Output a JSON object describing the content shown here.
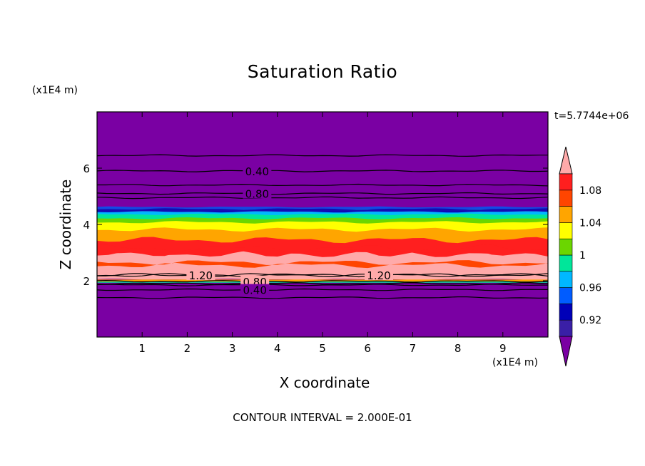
{
  "chart_data": {
    "type": "heatmap",
    "title": "Saturation Ratio",
    "xlabel": "X coordinate",
    "ylabel": "Z coordinate",
    "x_unit": "(x1E4 m)",
    "y_unit": "(x1E4 m)",
    "time_label": "t=5.7744e+06",
    "footer": "CONTOUR INTERVAL = 2.000E-01",
    "xlim": [
      0,
      10
    ],
    "ylim": [
      0,
      8
    ],
    "x_ticks": [
      "1",
      "2",
      "3",
      "4",
      "5",
      "6",
      "7",
      "8",
      "9"
    ],
    "y_ticks": [
      "2",
      "4",
      "6"
    ],
    "colorbar": {
      "levels": [
        0.92,
        0.94,
        0.96,
        0.98,
        1.0,
        1.02,
        1.04,
        1.06,
        1.08,
        1.1
      ],
      "labels": [
        "0.92",
        "0.96",
        "1",
        "1.04",
        "1.08"
      ],
      "colors": [
        "#7a00a3",
        "#3a1fa6",
        "#0000b8",
        "#005cff",
        "#00b8ff",
        "#00e69a",
        "#6bd600",
        "#ffff00",
        "#ffa500",
        "#ff4500",
        "#ff1f1f",
        "#ffaaaa"
      ]
    },
    "layers": [
      {
        "z": [
          0.0,
          1.95
        ],
        "level": "<0.92"
      },
      {
        "z": [
          1.95,
          2.03
        ],
        "level": "transition"
      },
      {
        "z": [
          2.03,
          2.8
        ],
        "level": ">1.1"
      },
      {
        "z": [
          2.8,
          3.6
        ],
        "level": "1.08-1.1"
      },
      {
        "z": [
          3.6,
          4.05
        ],
        "level": "1.04-1.08"
      },
      {
        "z": [
          4.05,
          4.4
        ],
        "level": "0.96-1.04"
      },
      {
        "z": [
          4.4,
          4.6
        ],
        "level": "0.92-0.96"
      },
      {
        "z": [
          4.6,
          8.0
        ],
        "level": "<0.92"
      }
    ],
    "contours": [
      {
        "value": 0.4,
        "z": 5.9,
        "label": "0.40",
        "label_x": 3.55
      },
      {
        "value": 0.8,
        "z": 5.1,
        "label": "0.80",
        "label_x": 3.55
      },
      {
        "value": 1.2,
        "z": 2.2,
        "label": "1.20",
        "label_x": 2.3
      },
      {
        "value": 1.2,
        "z": 2.2,
        "label": "1.20",
        "label_x": 6.25
      },
      {
        "value": 0.8,
        "z": 1.98,
        "label": "0.80",
        "label_x": 3.5
      },
      {
        "value": 0.4,
        "z": 1.68,
        "label": "0.40",
        "label_x": 3.5
      }
    ],
    "extra_contour_z": [
      6.45,
      5.4,
      4.95,
      1.9,
      1.85,
      1.4
    ]
  }
}
